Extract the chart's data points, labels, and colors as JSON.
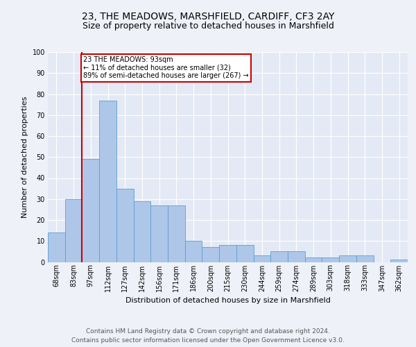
{
  "title_line1": "23, THE MEADOWS, MARSHFIELD, CARDIFF, CF3 2AY",
  "title_line2": "Size of property relative to detached houses in Marshfield",
  "xlabel": "Distribution of detached houses by size in Marshfield",
  "ylabel": "Number of detached properties",
  "bar_values": [
    14,
    30,
    49,
    77,
    35,
    29,
    27,
    27,
    10,
    7,
    8,
    8,
    3,
    5,
    5,
    2,
    2,
    3,
    3,
    0,
    1
  ],
  "bar_labels": [
    "68sqm",
    "83sqm",
    "97sqm",
    "112sqm",
    "127sqm",
    "142sqm",
    "156sqm",
    "171sqm",
    "186sqm",
    "200sqm",
    "215sqm",
    "230sqm",
    "244sqm",
    "259sqm",
    "274sqm",
    "289sqm",
    "303sqm",
    "318sqm",
    "333sqm",
    "347sqm",
    "362sqm"
  ],
  "bar_color": "#aec6e8",
  "bar_edge_color": "#5a9fd4",
  "reference_line_color": "#cc0000",
  "annotation_text": "23 THE MEADOWS: 93sqm\n← 11% of detached houses are smaller (32)\n89% of semi-detached houses are larger (267) →",
  "annotation_box_color": "#ffffff",
  "annotation_box_edge_color": "#cc0000",
  "ylim": [
    0,
    100
  ],
  "yticks": [
    0,
    10,
    20,
    30,
    40,
    50,
    60,
    70,
    80,
    90,
    100
  ],
  "footer_text": "Contains HM Land Registry data © Crown copyright and database right 2024.\nContains public sector information licensed under the Open Government Licence v3.0.",
  "background_color": "#eef2f8",
  "plot_background_color": "#e4eaf5",
  "grid_color": "#ffffff",
  "title_fontsize": 10,
  "subtitle_fontsize": 9,
  "axis_label_fontsize": 8,
  "tick_fontsize": 7,
  "footer_fontsize": 6.5
}
